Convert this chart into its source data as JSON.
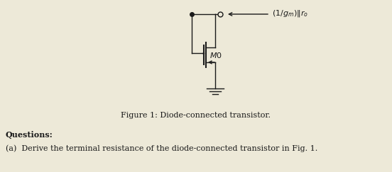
{
  "bg_color": "#ede9d8",
  "fig_caption": "Figure 1: Diode-connected transistor.",
  "questions_label": "Questions",
  "question_a": "(a)  Derive the terminal resistance of the diode-connected transistor in Fig. 1.",
  "transistor_label": "M0",
  "line_color": "#1a1a1a",
  "text_color": "#1a1a1a",
  "figsize": [
    5.52,
    2.43
  ],
  "dpi": 100,
  "annotation": "(1/g_m)||r_o"
}
